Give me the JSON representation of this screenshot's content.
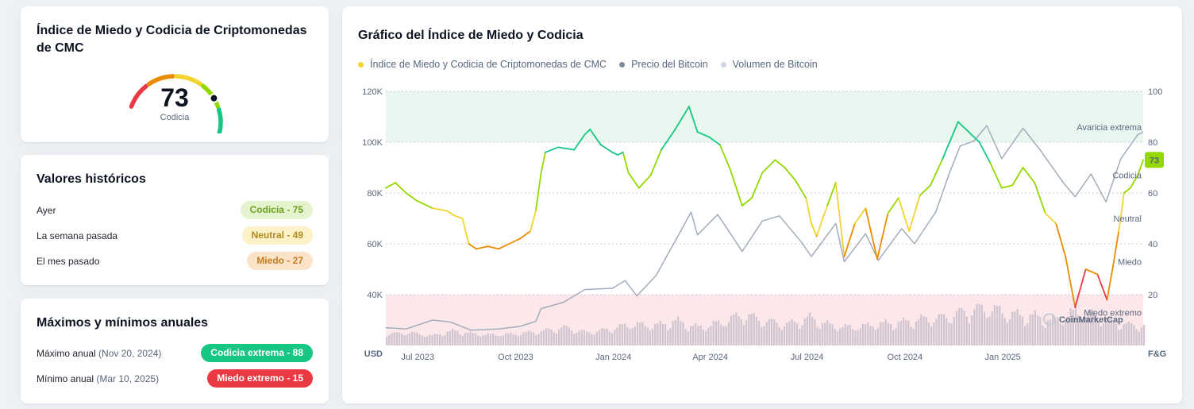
{
  "gauge_card": {
    "title": "Índice de Miedo y Codicia de Criptomonedas de CMC",
    "value": "73",
    "label": "Codicia",
    "fraction": 0.73
  },
  "historical": {
    "title": "Valores históricos",
    "rows": [
      {
        "label": "Ayer",
        "badge": "Codicia - 75",
        "bg": "#e4f4cf",
        "fg": "#6ea01e"
      },
      {
        "label": "La semana pasada",
        "badge": "Neutral - 49",
        "bg": "#fcf1c7",
        "fg": "#b08b1e"
      },
      {
        "label": "El mes pasado",
        "badge": "Miedo - 27",
        "bg": "#fbe3c7",
        "fg": "#c57b22"
      }
    ]
  },
  "yearly": {
    "title": "Máximos y mínimos anuales",
    "max_label": "Máximo anual",
    "max_date": "(Nov 20, 2024)",
    "max_badge": "Codicia extrema - 88",
    "min_label": "Mínimo anual",
    "min_date": "(Mar 10, 2025)",
    "min_badge": "Miedo extremo - 15",
    "max_color": "#16c784",
    "min_color": "#ea3943"
  },
  "chart_card": {
    "title": "Gráfico del Índice de Miedo y Codicia",
    "watermark": "CoinMarketCap"
  },
  "colors": {
    "extreme_fear": "#ea3943",
    "fear": "#ea8c00",
    "neutral": "#f3d42f",
    "greed": "#93d900",
    "extreme_greed": "#16c784",
    "price": "#a2acba",
    "volume": "#cfc4cf"
  },
  "chart_data": {
    "type": "line",
    "legend": [
      "Índice de Miedo y Codicia de Criptomonedas de CMC",
      "Precio del Bitcoin",
      "Volumen de Bitcoin"
    ],
    "legend_colors": [
      "#f3d42f",
      "#808a9d",
      "#cfd6e4"
    ],
    "x_ticks": [
      "Jul 2023",
      "Oct 2023",
      "Jan 2024",
      "Apr 2024",
      "Jul 2024",
      "Oct 2024",
      "Jan 2025"
    ],
    "left_axis_unit": "USD",
    "right_axis_unit": "F&G",
    "left_ticks": [
      "40K",
      "60K",
      "80K",
      "100K",
      "120K"
    ],
    "right_ticks": [
      "20",
      "40",
      "60",
      "80",
      "100"
    ],
    "left_ylim": [
      20000,
      120000
    ],
    "right_ylim": [
      0,
      100
    ],
    "zones": [
      "Miedo extremo",
      "Miedo",
      "Neutral",
      "Codicia",
      "Avaricia extrema"
    ],
    "current_value": "73",
    "series": [
      {
        "name": "Índice de Miedo y Codicia de Criptomonedas de CMC",
        "axis": "right",
        "points": [
          [
            "2023-06-01",
            62
          ],
          [
            "2023-06-10",
            64
          ],
          [
            "2023-06-20",
            60
          ],
          [
            "2023-06-30",
            57
          ],
          [
            "2023-07-15",
            54
          ],
          [
            "2023-07-28",
            53
          ],
          [
            "2023-08-05",
            51
          ],
          [
            "2023-08-12",
            50
          ],
          [
            "2023-08-18",
            40
          ],
          [
            "2023-08-25",
            38
          ],
          [
            "2023-09-05",
            39
          ],
          [
            "2023-09-15",
            38
          ],
          [
            "2023-09-25",
            40
          ],
          [
            "2023-10-05",
            42
          ],
          [
            "2023-10-15",
            45
          ],
          [
            "2023-10-20",
            53
          ],
          [
            "2023-10-25",
            68
          ],
          [
            "2023-10-29",
            76
          ],
          [
            "2023-11-10",
            78
          ],
          [
            "2023-11-25",
            77
          ],
          [
            "2023-12-05",
            83
          ],
          [
            "2023-12-10",
            85
          ],
          [
            "2023-12-20",
            79
          ],
          [
            "2023-12-31",
            76
          ],
          [
            "2024-01-05",
            75
          ],
          [
            "2024-01-10",
            76
          ],
          [
            "2024-01-15",
            68
          ],
          [
            "2024-01-25",
            62
          ],
          [
            "2024-02-05",
            67
          ],
          [
            "2024-02-15",
            77
          ],
          [
            "2024-02-28",
            85
          ],
          [
            "2024-03-12",
            94
          ],
          [
            "2024-03-20",
            84
          ],
          [
            "2024-03-31",
            82
          ],
          [
            "2024-04-10",
            79
          ],
          [
            "2024-04-20",
            69
          ],
          [
            "2024-05-01",
            55
          ],
          [
            "2024-05-10",
            58
          ],
          [
            "2024-05-20",
            68
          ],
          [
            "2024-06-01",
            73
          ],
          [
            "2024-06-10",
            70
          ],
          [
            "2024-06-20",
            65
          ],
          [
            "2024-06-30",
            58
          ],
          [
            "2024-07-05",
            48
          ],
          [
            "2024-07-10",
            43
          ],
          [
            "2024-07-20",
            55
          ],
          [
            "2024-07-28",
            64
          ],
          [
            "2024-08-05",
            35
          ],
          [
            "2024-08-15",
            48
          ],
          [
            "2024-08-25",
            54
          ],
          [
            "2024-09-05",
            34
          ],
          [
            "2024-09-15",
            52
          ],
          [
            "2024-09-25",
            58
          ],
          [
            "2024-10-05",
            45
          ],
          [
            "2024-10-15",
            59
          ],
          [
            "2024-10-25",
            63
          ],
          [
            "2024-11-05",
            73
          ],
          [
            "2024-11-12",
            80
          ],
          [
            "2024-11-20",
            88
          ],
          [
            "2024-11-30",
            84
          ],
          [
            "2024-12-10",
            80
          ],
          [
            "2024-12-20",
            72
          ],
          [
            "2024-12-31",
            62
          ],
          [
            "2025-01-10",
            63
          ],
          [
            "2025-01-20",
            70
          ],
          [
            "2025-01-31",
            64
          ],
          [
            "2025-02-10",
            52
          ],
          [
            "2025-02-20",
            48
          ],
          [
            "2025-03-01",
            35
          ],
          [
            "2025-03-10",
            15
          ],
          [
            "2025-03-20",
            30
          ],
          [
            "2025-03-31",
            28
          ],
          [
            "2025-04-09",
            18
          ],
          [
            "2025-04-15",
            32
          ],
          [
            "2025-04-20",
            45
          ],
          [
            "2025-04-25",
            60
          ],
          [
            "2025-05-01",
            62
          ],
          [
            "2025-05-08",
            67
          ],
          [
            "2025-05-13",
            73
          ]
        ]
      },
      {
        "name": "Precio del Bitcoin",
        "axis": "left",
        "points": [
          [
            "2023-06-01",
            27000
          ],
          [
            "2023-06-20",
            26500
          ],
          [
            "2023-07-15",
            30000
          ],
          [
            "2023-08-01",
            29200
          ],
          [
            "2023-08-20",
            26000
          ],
          [
            "2023-09-15",
            26500
          ],
          [
            "2023-10-05",
            27500
          ],
          [
            "2023-10-20",
            29500
          ],
          [
            "2023-10-25",
            34500
          ],
          [
            "2023-11-15",
            37000
          ],
          [
            "2023-12-05",
            42000
          ],
          [
            "2023-12-31",
            42500
          ],
          [
            "2024-01-12",
            45500
          ],
          [
            "2024-01-23",
            39500
          ],
          [
            "2024-02-10",
            47500
          ],
          [
            "2024-02-28",
            61000
          ],
          [
            "2024-03-14",
            72500
          ],
          [
            "2024-03-20",
            63500
          ],
          [
            "2024-04-08",
            71500
          ],
          [
            "2024-04-20",
            64000
          ],
          [
            "2024-05-01",
            57000
          ],
          [
            "2024-05-20",
            69000
          ],
          [
            "2024-06-05",
            71000
          ],
          [
            "2024-06-25",
            61000
          ],
          [
            "2024-07-05",
            55000
          ],
          [
            "2024-07-28",
            68000
          ],
          [
            "2024-08-05",
            53000
          ],
          [
            "2024-08-25",
            64000
          ],
          [
            "2024-09-06",
            53500
          ],
          [
            "2024-09-28",
            66000
          ],
          [
            "2024-10-10",
            60000
          ],
          [
            "2024-10-30",
            72500
          ],
          [
            "2024-11-12",
            88000
          ],
          [
            "2024-11-22",
            98500
          ],
          [
            "2024-12-05",
            100500
          ],
          [
            "2024-12-17",
            106500
          ],
          [
            "2024-12-31",
            93500
          ],
          [
            "2025-01-20",
            105500
          ],
          [
            "2025-02-05",
            97000
          ],
          [
            "2025-02-27",
            84000
          ],
          [
            "2025-03-10",
            78500
          ],
          [
            "2025-03-25",
            87500
          ],
          [
            "2025-04-08",
            76500
          ],
          [
            "2025-04-22",
            93500
          ],
          [
            "2025-05-08",
            103000
          ],
          [
            "2025-05-13",
            104000
          ]
        ]
      },
      {
        "name": "Volumen de Bitcoin",
        "axis": "volume",
        "values_relative": [
          0.2,
          0.25,
          0.15,
          0.3,
          0.2,
          0.18,
          0.22,
          0.3,
          0.4,
          0.25,
          0.35,
          0.5,
          0.45,
          0.6,
          0.4,
          0.55,
          0.8,
          0.6,
          0.5,
          0.7,
          0.45,
          0.4,
          0.5,
          0.55,
          0.65,
          0.7,
          0.9,
          1.0,
          0.8,
          0.75,
          0.6,
          0.9,
          0.7,
          0.5,
          0.45
        ]
      }
    ]
  }
}
